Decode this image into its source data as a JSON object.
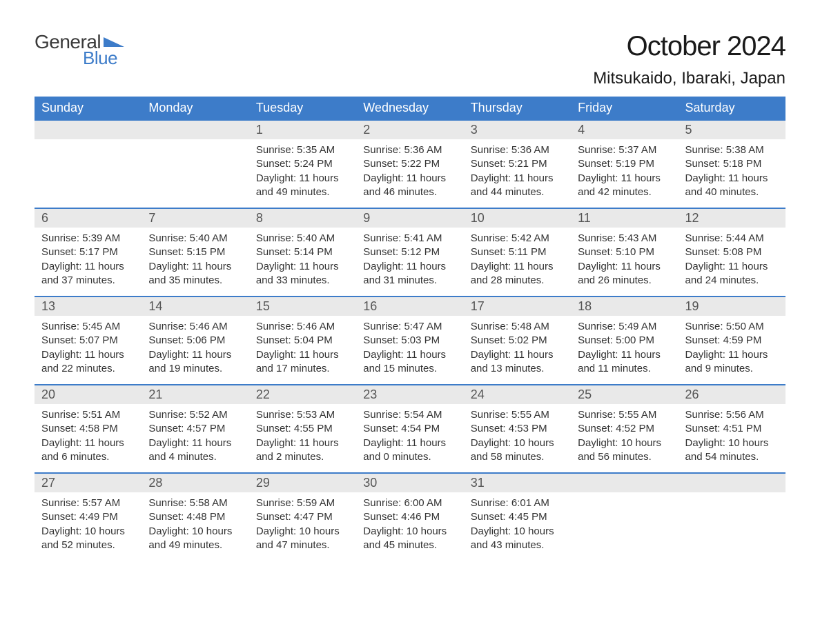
{
  "logo": {
    "text_general": "General",
    "text_blue": "Blue",
    "general_color": "#3a3a3a",
    "blue_color": "#3d7cc9",
    "flag_color": "#3d7cc9"
  },
  "title": "October 2024",
  "location": "Mitsukaido, Ibaraki, Japan",
  "colors": {
    "header_bg": "#3d7cc9",
    "header_text": "#ffffff",
    "daynum_bg": "#e9e9e9",
    "daynum_text": "#555555",
    "body_text": "#333333",
    "row_border": "#3d7cc9",
    "background": "#ffffff"
  },
  "fonts": {
    "title_size": 40,
    "location_size": 24,
    "weekday_size": 18,
    "daynum_size": 18,
    "body_size": 15
  },
  "weekdays": [
    "Sunday",
    "Monday",
    "Tuesday",
    "Wednesday",
    "Thursday",
    "Friday",
    "Saturday"
  ],
  "weeks": [
    [
      null,
      null,
      {
        "day": "1",
        "sunrise": "5:35 AM",
        "sunset": "5:24 PM",
        "daylight_a": "11 hours",
        "daylight_b": "and 49 minutes."
      },
      {
        "day": "2",
        "sunrise": "5:36 AM",
        "sunset": "5:22 PM",
        "daylight_a": "11 hours",
        "daylight_b": "and 46 minutes."
      },
      {
        "day": "3",
        "sunrise": "5:36 AM",
        "sunset": "5:21 PM",
        "daylight_a": "11 hours",
        "daylight_b": "and 44 minutes."
      },
      {
        "day": "4",
        "sunrise": "5:37 AM",
        "sunset": "5:19 PM",
        "daylight_a": "11 hours",
        "daylight_b": "and 42 minutes."
      },
      {
        "day": "5",
        "sunrise": "5:38 AM",
        "sunset": "5:18 PM",
        "daylight_a": "11 hours",
        "daylight_b": "and 40 minutes."
      }
    ],
    [
      {
        "day": "6",
        "sunrise": "5:39 AM",
        "sunset": "5:17 PM",
        "daylight_a": "11 hours",
        "daylight_b": "and 37 minutes."
      },
      {
        "day": "7",
        "sunrise": "5:40 AM",
        "sunset": "5:15 PM",
        "daylight_a": "11 hours",
        "daylight_b": "and 35 minutes."
      },
      {
        "day": "8",
        "sunrise": "5:40 AM",
        "sunset": "5:14 PM",
        "daylight_a": "11 hours",
        "daylight_b": "and 33 minutes."
      },
      {
        "day": "9",
        "sunrise": "5:41 AM",
        "sunset": "5:12 PM",
        "daylight_a": "11 hours",
        "daylight_b": "and 31 minutes."
      },
      {
        "day": "10",
        "sunrise": "5:42 AM",
        "sunset": "5:11 PM",
        "daylight_a": "11 hours",
        "daylight_b": "and 28 minutes."
      },
      {
        "day": "11",
        "sunrise": "5:43 AM",
        "sunset": "5:10 PM",
        "daylight_a": "11 hours",
        "daylight_b": "and 26 minutes."
      },
      {
        "day": "12",
        "sunrise": "5:44 AM",
        "sunset": "5:08 PM",
        "daylight_a": "11 hours",
        "daylight_b": "and 24 minutes."
      }
    ],
    [
      {
        "day": "13",
        "sunrise": "5:45 AM",
        "sunset": "5:07 PM",
        "daylight_a": "11 hours",
        "daylight_b": "and 22 minutes."
      },
      {
        "day": "14",
        "sunrise": "5:46 AM",
        "sunset": "5:06 PM",
        "daylight_a": "11 hours",
        "daylight_b": "and 19 minutes."
      },
      {
        "day": "15",
        "sunrise": "5:46 AM",
        "sunset": "5:04 PM",
        "daylight_a": "11 hours",
        "daylight_b": "and 17 minutes."
      },
      {
        "day": "16",
        "sunrise": "5:47 AM",
        "sunset": "5:03 PM",
        "daylight_a": "11 hours",
        "daylight_b": "and 15 minutes."
      },
      {
        "day": "17",
        "sunrise": "5:48 AM",
        "sunset": "5:02 PM",
        "daylight_a": "11 hours",
        "daylight_b": "and 13 minutes."
      },
      {
        "day": "18",
        "sunrise": "5:49 AM",
        "sunset": "5:00 PM",
        "daylight_a": "11 hours",
        "daylight_b": "and 11 minutes."
      },
      {
        "day": "19",
        "sunrise": "5:50 AM",
        "sunset": "4:59 PM",
        "daylight_a": "11 hours",
        "daylight_b": "and 9 minutes."
      }
    ],
    [
      {
        "day": "20",
        "sunrise": "5:51 AM",
        "sunset": "4:58 PM",
        "daylight_a": "11 hours",
        "daylight_b": "and 6 minutes."
      },
      {
        "day": "21",
        "sunrise": "5:52 AM",
        "sunset": "4:57 PM",
        "daylight_a": "11 hours",
        "daylight_b": "and 4 minutes."
      },
      {
        "day": "22",
        "sunrise": "5:53 AM",
        "sunset": "4:55 PM",
        "daylight_a": "11 hours",
        "daylight_b": "and 2 minutes."
      },
      {
        "day": "23",
        "sunrise": "5:54 AM",
        "sunset": "4:54 PM",
        "daylight_a": "11 hours",
        "daylight_b": "and 0 minutes."
      },
      {
        "day": "24",
        "sunrise": "5:55 AM",
        "sunset": "4:53 PM",
        "daylight_a": "10 hours",
        "daylight_b": "and 58 minutes."
      },
      {
        "day": "25",
        "sunrise": "5:55 AM",
        "sunset": "4:52 PM",
        "daylight_a": "10 hours",
        "daylight_b": "and 56 minutes."
      },
      {
        "day": "26",
        "sunrise": "5:56 AM",
        "sunset": "4:51 PM",
        "daylight_a": "10 hours",
        "daylight_b": "and 54 minutes."
      }
    ],
    [
      {
        "day": "27",
        "sunrise": "5:57 AM",
        "sunset": "4:49 PM",
        "daylight_a": "10 hours",
        "daylight_b": "and 52 minutes."
      },
      {
        "day": "28",
        "sunrise": "5:58 AM",
        "sunset": "4:48 PM",
        "daylight_a": "10 hours",
        "daylight_b": "and 49 minutes."
      },
      {
        "day": "29",
        "sunrise": "5:59 AM",
        "sunset": "4:47 PM",
        "daylight_a": "10 hours",
        "daylight_b": "and 47 minutes."
      },
      {
        "day": "30",
        "sunrise": "6:00 AM",
        "sunset": "4:46 PM",
        "daylight_a": "10 hours",
        "daylight_b": "and 45 minutes."
      },
      {
        "day": "31",
        "sunrise": "6:01 AM",
        "sunset": "4:45 PM",
        "daylight_a": "10 hours",
        "daylight_b": "and 43 minutes."
      },
      null,
      null
    ]
  ],
  "labels": {
    "sunrise": "Sunrise: ",
    "sunset": "Sunset: ",
    "daylight": "Daylight: "
  }
}
